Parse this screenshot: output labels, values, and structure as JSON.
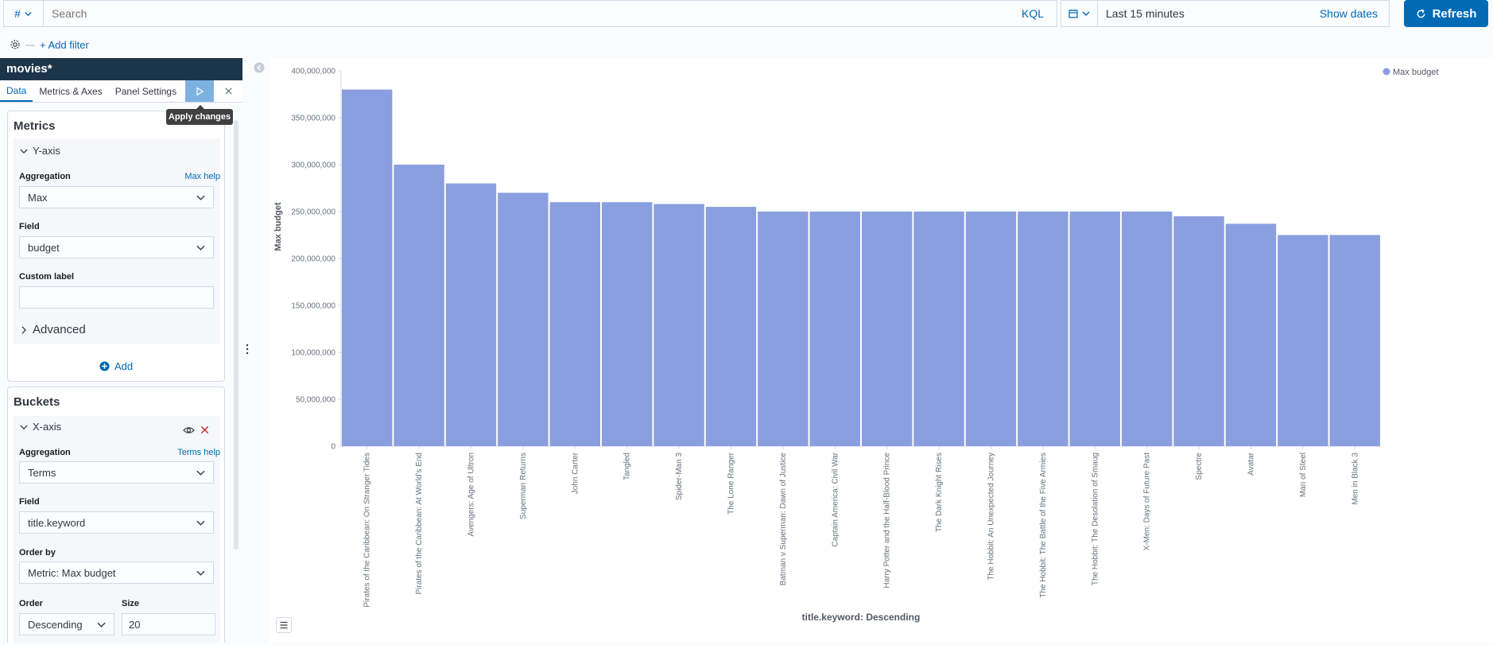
{
  "query": {
    "language_toggle": "#",
    "placeholder": "Search",
    "language": "KQL"
  },
  "time": {
    "range": "Last 15 minutes",
    "show_dates": "Show dates",
    "refresh": "Refresh"
  },
  "filters": {
    "add_filter": "+ Add filter"
  },
  "sidebar": {
    "index_pattern": "movies*",
    "tabs": [
      "Data",
      "Metrics & Axes",
      "Panel Settings"
    ],
    "apply_tooltip": "Apply changes",
    "metrics": {
      "title": "Metrics",
      "agg_title": "Y-axis",
      "aggregation_label": "Aggregation",
      "aggregation_help": "Max help",
      "aggregation_value": "Max",
      "field_label": "Field",
      "field_value": "budget",
      "custom_label": "Custom label",
      "custom_value": "",
      "advanced": "Advanced",
      "add": "Add"
    },
    "buckets": {
      "title": "Buckets",
      "agg_title": "X-axis",
      "aggregation_label": "Aggregation",
      "aggregation_help": "Terms help",
      "aggregation_value": "Terms",
      "field_label": "Field",
      "field_value": "title.keyword",
      "orderby_label": "Order by",
      "orderby_value": "Metric: Max budget",
      "order_label": "Order",
      "order_value": "Descending",
      "size_label": "Size",
      "size_value": "20"
    }
  },
  "colors": {
    "bar": "#8a9fe0",
    "accent": "#006bb4",
    "index_bar": "#1d3549"
  },
  "chart_data": {
    "type": "bar",
    "xlabel": "title.keyword: Descending",
    "ylabel": "Max budget",
    "legend": "Max budget",
    "legend_position": "top-right",
    "ylim": [
      0,
      400000000
    ],
    "yticks": [
      "0",
      "50,000,000",
      "100,000,000",
      "150,000,000",
      "200,000,000",
      "250,000,000",
      "300,000,000",
      "350,000,000",
      "400,000,000"
    ],
    "categories": [
      "Pirates of the Caribbean: On Stranger Tides",
      "Pirates of the Caribbean: At World's End",
      "Avengers: Age of Ultron",
      "Superman Returns",
      "John Carter",
      "Tangled",
      "Spider-Man 3",
      "The Lone Ranger",
      "Batman v Superman: Dawn of Justice",
      "Captain America: Civil War",
      "Harry Potter and the Half-Blood Prince",
      "The Dark Knight Rises",
      "The Hobbit: An Unexpected Journey",
      "The Hobbit: The Battle of the Five Armies",
      "The Hobbit: The Desolation of Smaug",
      "X-Men: Days of Future Past",
      "Spectre",
      "Avatar",
      "Man of Steel",
      "Men in Black 3"
    ],
    "values": [
      380000000,
      300000000,
      280000000,
      270000000,
      260000000,
      260000000,
      258000000,
      255000000,
      250000000,
      250000000,
      250000000,
      250000000,
      250000000,
      250000000,
      250000000,
      250000000,
      245000000,
      237000000,
      225000000,
      225000000
    ]
  }
}
